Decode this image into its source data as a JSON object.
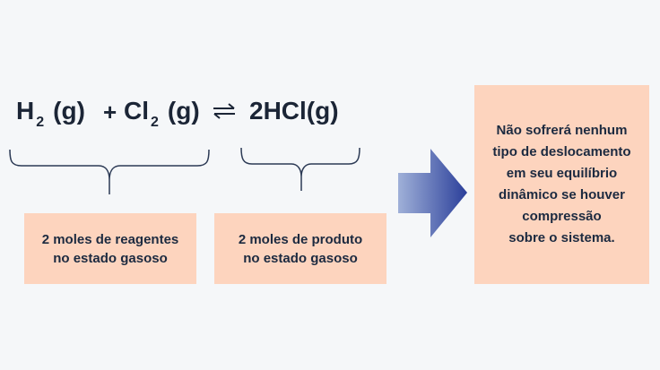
{
  "equation": {
    "reactant1_symbol": "H",
    "reactant1_subscript": "2",
    "reactant1_state": "(g)",
    "plus": "+",
    "reactant2_symbol": "Cl",
    "reactant2_subscript": "2",
    "reactant2_state": "(g)",
    "product": "2HCl(g)"
  },
  "labels": {
    "reactants": "2 moles de reagentes\nno estado gasoso",
    "products": "2 moles de produto\nno estado gasoso"
  },
  "conclusion": "Não sofrerá nenhum\ntipo de deslocamento\nem seu equilíbrio\ndinâmico se houver\ncompressão\nsobre o sistema.",
  "colors": {
    "background": "#f5f7f9",
    "box_fill": "#fdd4be",
    "text": "#1b2536",
    "brace": "#2c3a55",
    "arrow_start": "#9fb0d8",
    "arrow_end": "#2b3f9a"
  },
  "icons": {
    "equilibrium": "equilibrium-arrows-icon",
    "transition": "right-arrow-icon"
  }
}
